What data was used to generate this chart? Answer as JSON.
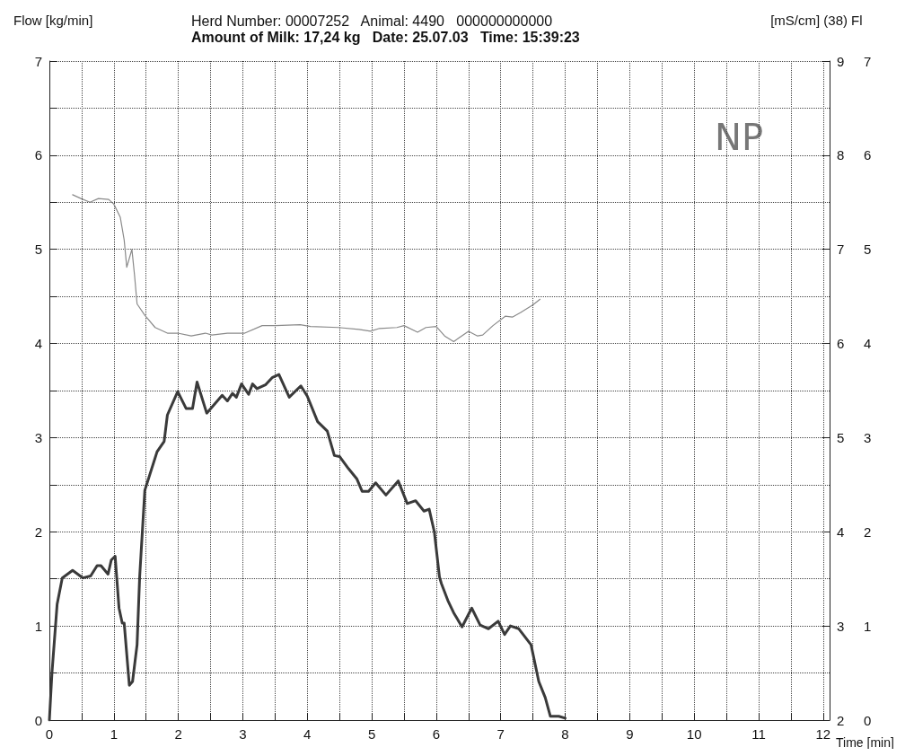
{
  "chart_data": {
    "type": "line",
    "title": "Herd Number: 00007252   Animal: 4490   000000000000",
    "subtitle": "Amount of Milk: 17,24 kg   Date: 25.07.03   Time: 15:39:23",
    "xlabel": "Time [min]",
    "ylabel": "Flow [kg/min]",
    "y2label": "[mS/cm] (38)",
    "y3label": "Fl",
    "annotations": [
      "NP"
    ],
    "xlim": [
      0,
      12.1
    ],
    "xticks": [
      0,
      {
        "value": 0.5,
        "label": null
      },
      1,
      {
        "value": 1.5,
        "label": null
      },
      2,
      {
        "value": 2.5,
        "label": null
      },
      3,
      {
        "value": 3.5,
        "label": null
      },
      4,
      {
        "value": 4.5,
        "label": null
      },
      5,
      {
        "value": 5.5,
        "label": null
      },
      6,
      {
        "value": 6.5,
        "label": null
      },
      7,
      {
        "value": 7.5,
        "label": null
      },
      8,
      {
        "value": 8.5,
        "label": null
      },
      9,
      {
        "value": 9.5,
        "label": null
      },
      10,
      {
        "value": 10.5,
        "label": null
      },
      11,
      {
        "value": 11.5,
        "label": null
      },
      12
    ],
    "ylim": [
      0,
      7
    ],
    "yticks": [
      0,
      {
        "value": 0.5,
        "label": null
      },
      1,
      {
        "value": 1.5,
        "label": null
      },
      2,
      {
        "value": 2.5,
        "label": null
      },
      3,
      {
        "value": 3.5,
        "label": null
      },
      4,
      {
        "value": 4.5,
        "label": null
      },
      5,
      {
        "value": 5.5,
        "label": null
      },
      6,
      {
        "value": 6.5,
        "label": null
      },
      7
    ],
    "y2lim": [
      2,
      9
    ],
    "y2ticks": [
      2,
      3,
      4,
      5,
      6,
      7,
      8,
      9
    ],
    "y3lim": [
      0,
      7
    ],
    "y3ticks": [
      0,
      1,
      2,
      3,
      4,
      5,
      6,
      7
    ],
    "grid": true,
    "marker": "none",
    "line_style": "solid",
    "series": [
      {
        "color": "#3a3a3a",
        "x": [
          0,
          0.04,
          0.12,
          0.2,
          0.36,
          0.52,
          0.64,
          0.74,
          0.8,
          0.91,
          0.96,
          1.02,
          1.08,
          1.13,
          1.16,
          1.24,
          1.29,
          1.36,
          1.4,
          1.48,
          1.67,
          1.78,
          1.83,
          1.99,
          2.12,
          2.22,
          2.29,
          2.44,
          2.68,
          2.76,
          2.84,
          2.9,
          2.98,
          3.09,
          3.15,
          3.22,
          3.35,
          3.46,
          3.56,
          3.72,
          3.9,
          4.0,
          4.16,
          4.31,
          4.42,
          4.5,
          4.64,
          4.77,
          4.85,
          4.95,
          5.06,
          5.22,
          5.41,
          5.55,
          5.68,
          5.81,
          5.89,
          5.97,
          6.05,
          6.08,
          6.18,
          6.27,
          6.4,
          6.55,
          6.68,
          6.81,
          6.96,
          7.06,
          7.15,
          7.28,
          7.47,
          7.59,
          7.69,
          7.77,
          7.9,
          8.0
        ],
        "values": [
          0,
          0.5,
          1.23,
          1.51,
          1.59,
          1.51,
          1.53,
          1.64,
          1.64,
          1.55,
          1.7,
          1.74,
          1.19,
          1.03,
          1.03,
          0.37,
          0.41,
          0.8,
          1.52,
          2.44,
          2.85,
          2.96,
          3.24,
          3.49,
          3.31,
          3.31,
          3.59,
          3.26,
          3.45,
          3.39,
          3.47,
          3.43,
          3.57,
          3.46,
          3.57,
          3.52,
          3.56,
          3.64,
          3.67,
          3.43,
          3.55,
          3.44,
          3.17,
          3.07,
          2.81,
          2.8,
          2.67,
          2.56,
          2.43,
          2.43,
          2.52,
          2.39,
          2.54,
          2.3,
          2.33,
          2.22,
          2.24,
          2.0,
          1.52,
          1.45,
          1.27,
          1.14,
          0.99,
          1.19,
          1.01,
          0.97,
          1.05,
          0.91,
          1.0,
          0.97,
          0.8,
          0.41,
          0.24,
          0.04,
          0.04,
          0.02
        ]
      },
      {
        "color": "#8a8a8a",
        "axis": "y2",
        "x": [
          0.36,
          0.49,
          0.63,
          0.76,
          0.92,
          1.0,
          1.1,
          1.16,
          1.2,
          1.28,
          1.32,
          1.36,
          1.48,
          1.64,
          1.83,
          1.99,
          2.2,
          2.42,
          2.52,
          2.76,
          3.03,
          3.3,
          3.51,
          3.89,
          4.05,
          4.48,
          4.8,
          4.98,
          5.12,
          5.39,
          5.5,
          5.71,
          5.84,
          6.0,
          6.13,
          6.27,
          6.5,
          6.64,
          6.72,
          6.88,
          7.07,
          7.18,
          7.31,
          7.5,
          7.61
        ],
        "values": [
          7.58,
          7.54,
          7.5,
          7.54,
          7.53,
          7.48,
          7.34,
          7.1,
          6.81,
          7.0,
          6.73,
          6.42,
          6.3,
          6.17,
          6.11,
          6.11,
          6.08,
          6.11,
          6.09,
          6.11,
          6.11,
          6.19,
          6.19,
          6.2,
          6.18,
          6.17,
          6.15,
          6.13,
          6.16,
          6.17,
          6.19,
          6.12,
          6.17,
          6.18,
          6.08,
          6.02,
          6.13,
          6.08,
          6.09,
          6.19,
          6.29,
          6.28,
          6.33,
          6.41,
          6.47
        ]
      }
    ]
  }
}
